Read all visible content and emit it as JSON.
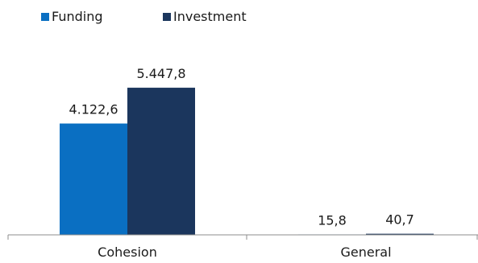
{
  "chart_data": {
    "type": "bar",
    "title": "",
    "xlabel": "",
    "ylabel": "",
    "categories": [
      "Cohesion",
      "General"
    ],
    "series": [
      {
        "name": "Funding",
        "color": "#0a6fc2",
        "values": [
          4122.6,
          15.8
        ],
        "labels": [
          "4.122,6",
          "15,8"
        ]
      },
      {
        "name": "Investment",
        "color": "#1b365d",
        "values": [
          5447.8,
          40.7
        ],
        "labels": [
          "5.447,8",
          "40,7"
        ]
      }
    ],
    "ylim": [
      0,
      8100
    ],
    "grid": false,
    "legend_position": "top-left",
    "axis_color": "#8c8c8c"
  }
}
